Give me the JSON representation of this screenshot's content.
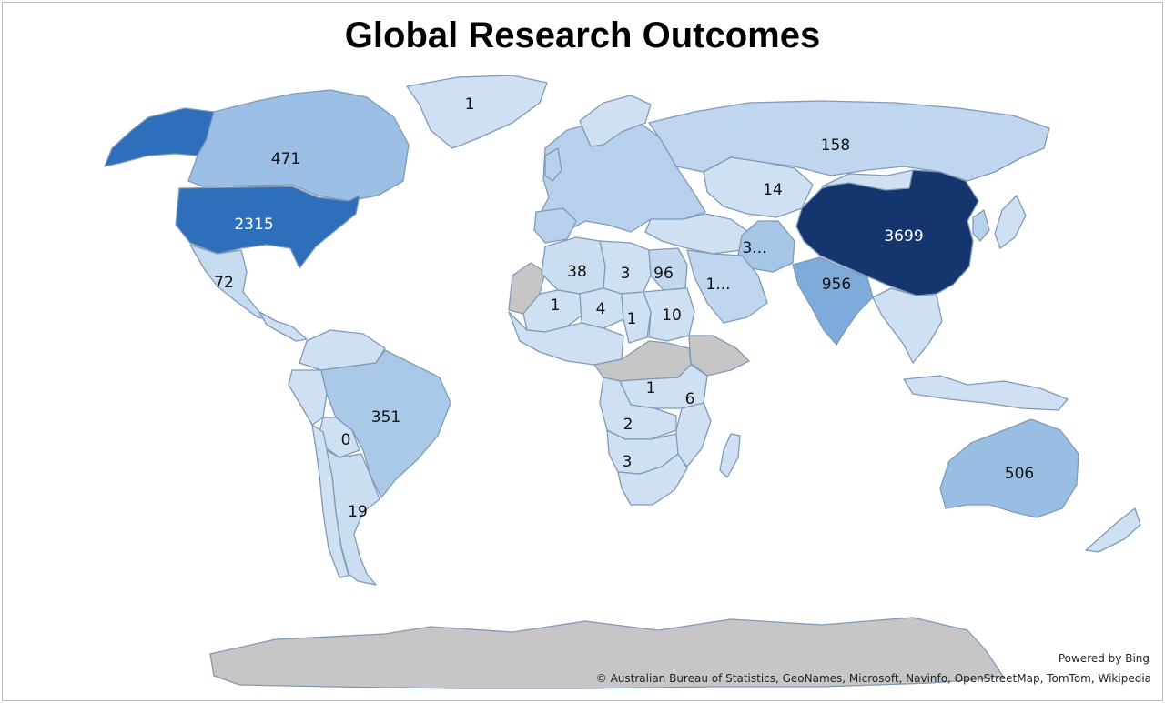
{
  "title": "Global Research Outcomes",
  "colors": {
    "scale_low": "#cfe0f2",
    "scale_mid": "#9ec1e6",
    "scale_high": "#2f74c1",
    "scale_max": "#15356f",
    "no_data": "#c6c6c6",
    "border": "#7f9ab8"
  },
  "regions": [
    {
      "name": "Alaska (United States)",
      "value": null,
      "fill_level": 0.63
    },
    {
      "name": "Greenland",
      "value": "1",
      "fill_level": 0.0
    },
    {
      "name": "Canada",
      "value": "471",
      "fill_level": 0.13
    },
    {
      "name": "United States",
      "value": "2315",
      "fill_level": 0.63
    },
    {
      "name": "Mexico",
      "value": "72",
      "fill_level": 0.02
    },
    {
      "name": "Brazil",
      "value": "351",
      "fill_level": 0.09
    },
    {
      "name": "Bolivia",
      "value": "0",
      "fill_level": 0.0
    },
    {
      "name": "Argentina",
      "value": "19",
      "fill_level": 0.01
    },
    {
      "name": "Russia",
      "value": "158",
      "fill_level": 0.04
    },
    {
      "name": "Kazakhstan",
      "value": "14",
      "fill_level": 0.0
    },
    {
      "name": "China",
      "value": "3699",
      "fill_level": 1.0
    },
    {
      "name": "India",
      "value": "956",
      "fill_level": 0.26
    },
    {
      "name": "Pakistan",
      "value": "3...",
      "fill_level": 0.1
    },
    {
      "name": "Saudi Arabia",
      "value": "1...",
      "fill_level": 0.04
    },
    {
      "name": "Algeria",
      "value": "38",
      "fill_level": 0.01
    },
    {
      "name": "Libya",
      "value": "3",
      "fill_level": 0.0
    },
    {
      "name": "Egypt",
      "value": "96",
      "fill_level": 0.03
    },
    {
      "name": "Mali",
      "value": "1",
      "fill_level": 0.0
    },
    {
      "name": "Niger",
      "value": "4",
      "fill_level": 0.0
    },
    {
      "name": "Chad",
      "value": "1",
      "fill_level": 0.0
    },
    {
      "name": "Sudan",
      "value": "10",
      "fill_level": 0.0
    },
    {
      "name": "Tanzania",
      "value": "1",
      "fill_level": 0.0
    },
    {
      "name": "Mozambique",
      "value": "6",
      "fill_level": 0.0
    },
    {
      "name": "Zambia",
      "value": "2",
      "fill_level": 0.0
    },
    {
      "name": "Botswana",
      "value": "3",
      "fill_level": 0.0
    },
    {
      "name": "Australia",
      "value": "506",
      "fill_level": 0.14
    }
  ],
  "credits": {
    "powered_by": "Powered by Bing",
    "attribution": "© Australian Bureau of Statistics, GeoNames, Microsoft, Navinfo, OpenStreetMap, TomTom, Wikipedia"
  }
}
